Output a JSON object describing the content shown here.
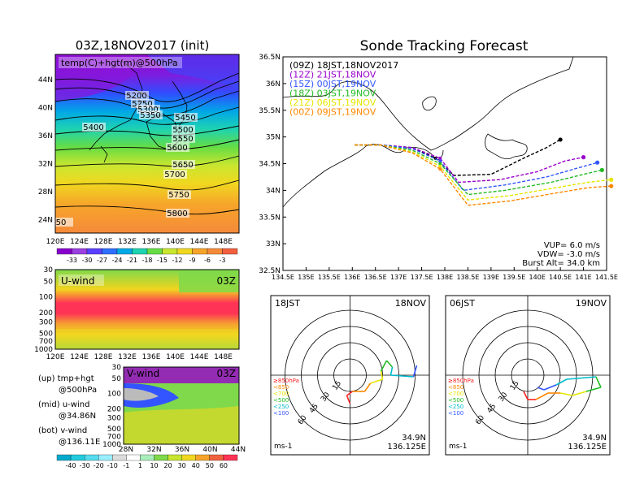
{
  "colors": {
    "purple": "#9900cc",
    "blue": "#3355ff",
    "green": "#22bb22",
    "yellow": "#e6e600",
    "orange": "#ff8800",
    "dash09": "#000000"
  },
  "left_panel": {
    "title": "03Z,18NOV2017 (init)",
    "map_label": "temp(C)+hgt(m)@500hPa",
    "lat_ticks": [
      "44N",
      "40N",
      "36N",
      "32N",
      "28N",
      "24N"
    ],
    "lon_ticks": [
      "120E",
      "124E",
      "128E",
      "132E",
      "136E",
      "140E",
      "144E",
      "148E"
    ],
    "contours": [
      "5200",
      "5250",
      "5300",
      "5350",
      "5400",
      "5450",
      "5500",
      "5550",
      "5600",
      "5650",
      "5700",
      "5750",
      "5800",
      "50"
    ],
    "temp_scale": [
      "-33",
      "-30",
      "-27",
      "-24",
      "-21",
      "-18",
      "-15",
      "-12",
      "-9",
      "-6",
      "-3"
    ],
    "uwind_label": "U-wind",
    "uwind_time": "03Z",
    "vwind_label": "V-wind",
    "vwind_time": "03Z",
    "p_ticks": [
      "30",
      "50",
      "100",
      "200",
      "300",
      "500",
      "700",
      "1000"
    ],
    "lat2_ticks": [
      "28N",
      "32N",
      "36N",
      "40N",
      "44N"
    ],
    "legend": [
      {
        "line1": "(up) tmp+hgt",
        "line2": "@500hPa"
      },
      {
        "line1": "(mid) u-wind",
        "line2": "@34.86N"
      },
      {
        "line1": "(bot) v-wind",
        "line2": "@136.11E"
      }
    ],
    "wind_scale": [
      "-40",
      "-30",
      "-20",
      "-10",
      "-1",
      "1",
      "10",
      "20",
      "30",
      "40",
      "50",
      "60"
    ]
  },
  "tracking": {
    "title": "Sonde Tracking Forecast",
    "lat_ticks": [
      "36.5N",
      "36N",
      "35.5N",
      "35N",
      "34.5N",
      "34N",
      "33.5N",
      "33N",
      "32.5N"
    ],
    "lon_ticks": [
      "134.5E",
      "135E",
      "135.5E",
      "136E",
      "136.5E",
      "137E",
      "137.5E",
      "138E",
      "138.5E",
      "139E",
      "139.5E",
      "140E",
      "140.5E",
      "141E",
      "141.5E"
    ],
    "legend": [
      {
        "text": "(09Z)  18JST,18NOV2017",
        "color": "#000000"
      },
      {
        "text": "(12Z)  21JST,18NOV",
        "color": "#9900cc"
      },
      {
        "text": "(15Z)  00JST,19NOV",
        "color": "#3355ff"
      },
      {
        "text": "(18Z)  03JST,19NOV",
        "color": "#22bb22"
      },
      {
        "text": "(21Z)  06JST,19NOV",
        "color": "#e6e600"
      },
      {
        "text": "(00Z)  09JST,19NOV",
        "color": "#ff8800"
      }
    ],
    "vup": "VUP=  6.0  m/s",
    "vdw": "VDW=  -3.0  m/s",
    "burst": "Burst Alt=  34.0  km"
  },
  "hodo_left": {
    "time": "18JST",
    "date": "18NOV",
    "rings": [
      "15",
      "30",
      "45",
      "60"
    ],
    "pos1": "34.9N",
    "pos2": "136.125E",
    "unit": "ms-1",
    "plevels": [
      {
        "t": "≥850hPa",
        "c": "#ff2222"
      },
      {
        "t": "<850",
        "c": "#ff8800"
      },
      {
        "t": "<700",
        "c": "#e6e600"
      },
      {
        "t": "<500",
        "c": "#22bb22"
      },
      {
        "t": "<250",
        "c": "#00bbcc"
      },
      {
        "t": "<100",
        "c": "#3355ff"
      }
    ]
  },
  "hodo_right": {
    "time": "06JST",
    "date": "19NOV",
    "rings": [
      "15",
      "30",
      "45",
      "60"
    ],
    "pos1": "34.9N",
    "pos2": "136.125E",
    "unit": "ms-1",
    "plevels": [
      {
        "t": "≥850hPa",
        "c": "#ff2222"
      },
      {
        "t": "<850",
        "c": "#ff8800"
      },
      {
        "t": "<700",
        "c": "#e6e600"
      },
      {
        "t": "<500",
        "c": "#22bb22"
      },
      {
        "t": "<250",
        "c": "#00bbcc"
      },
      {
        "t": "<100",
        "c": "#3355ff"
      }
    ]
  },
  "chart_data": {
    "type": "line",
    "title": "Sonde Tracking Forecast",
    "xlim": [
      134.5,
      141.5
    ],
    "ylim": [
      32.5,
      36.5
    ],
    "series": [
      {
        "name": "(09Z) 18JST,18NOV2017",
        "x": [
          136.05,
          136.6,
          137.3,
          137.8,
          138.2,
          139.0,
          139.7,
          140.2,
          140.5
        ],
        "y": [
          34.85,
          34.85,
          34.8,
          34.6,
          34.28,
          34.3,
          34.6,
          34.8,
          34.95
        ]
      },
      {
        "name": "(12Z) 21JST,18NOV",
        "x": [
          136.05,
          136.6,
          137.3,
          137.9,
          138.3,
          139.2,
          140.0,
          140.6,
          141.0
        ],
        "y": [
          34.85,
          34.85,
          34.8,
          34.6,
          34.15,
          34.2,
          34.35,
          34.55,
          34.62
        ]
      },
      {
        "name": "(15Z) 00JST,19NOV",
        "x": [
          136.05,
          136.6,
          137.3,
          137.9,
          138.4,
          139.3,
          140.2,
          140.8,
          141.3
        ],
        "y": [
          34.85,
          34.85,
          34.78,
          34.55,
          34.0,
          34.1,
          34.25,
          34.4,
          34.52
        ]
      },
      {
        "name": "(18Z) 03JST,19NOV",
        "x": [
          136.05,
          136.6,
          137.3,
          137.9,
          138.5,
          139.3,
          140.3,
          141.0,
          141.4
        ],
        "y": [
          34.85,
          34.85,
          34.75,
          34.5,
          33.92,
          34.0,
          34.15,
          34.3,
          34.38
        ]
      },
      {
        "name": "(21Z) 06JST,19NOV",
        "x": [
          136.05,
          136.6,
          137.3,
          137.9,
          138.5,
          139.4,
          140.4,
          141.1,
          141.6
        ],
        "y": [
          34.85,
          34.85,
          34.72,
          34.45,
          33.82,
          33.9,
          34.05,
          34.15,
          34.2
        ]
      },
      {
        "name": "(00Z) 09JST,19NOV",
        "x": [
          136.05,
          136.6,
          137.3,
          137.9,
          138.5,
          139.4,
          140.4,
          141.1,
          141.6
        ],
        "y": [
          34.85,
          34.85,
          34.7,
          34.4,
          33.72,
          33.8,
          33.95,
          34.05,
          34.08
        ]
      }
    ]
  }
}
